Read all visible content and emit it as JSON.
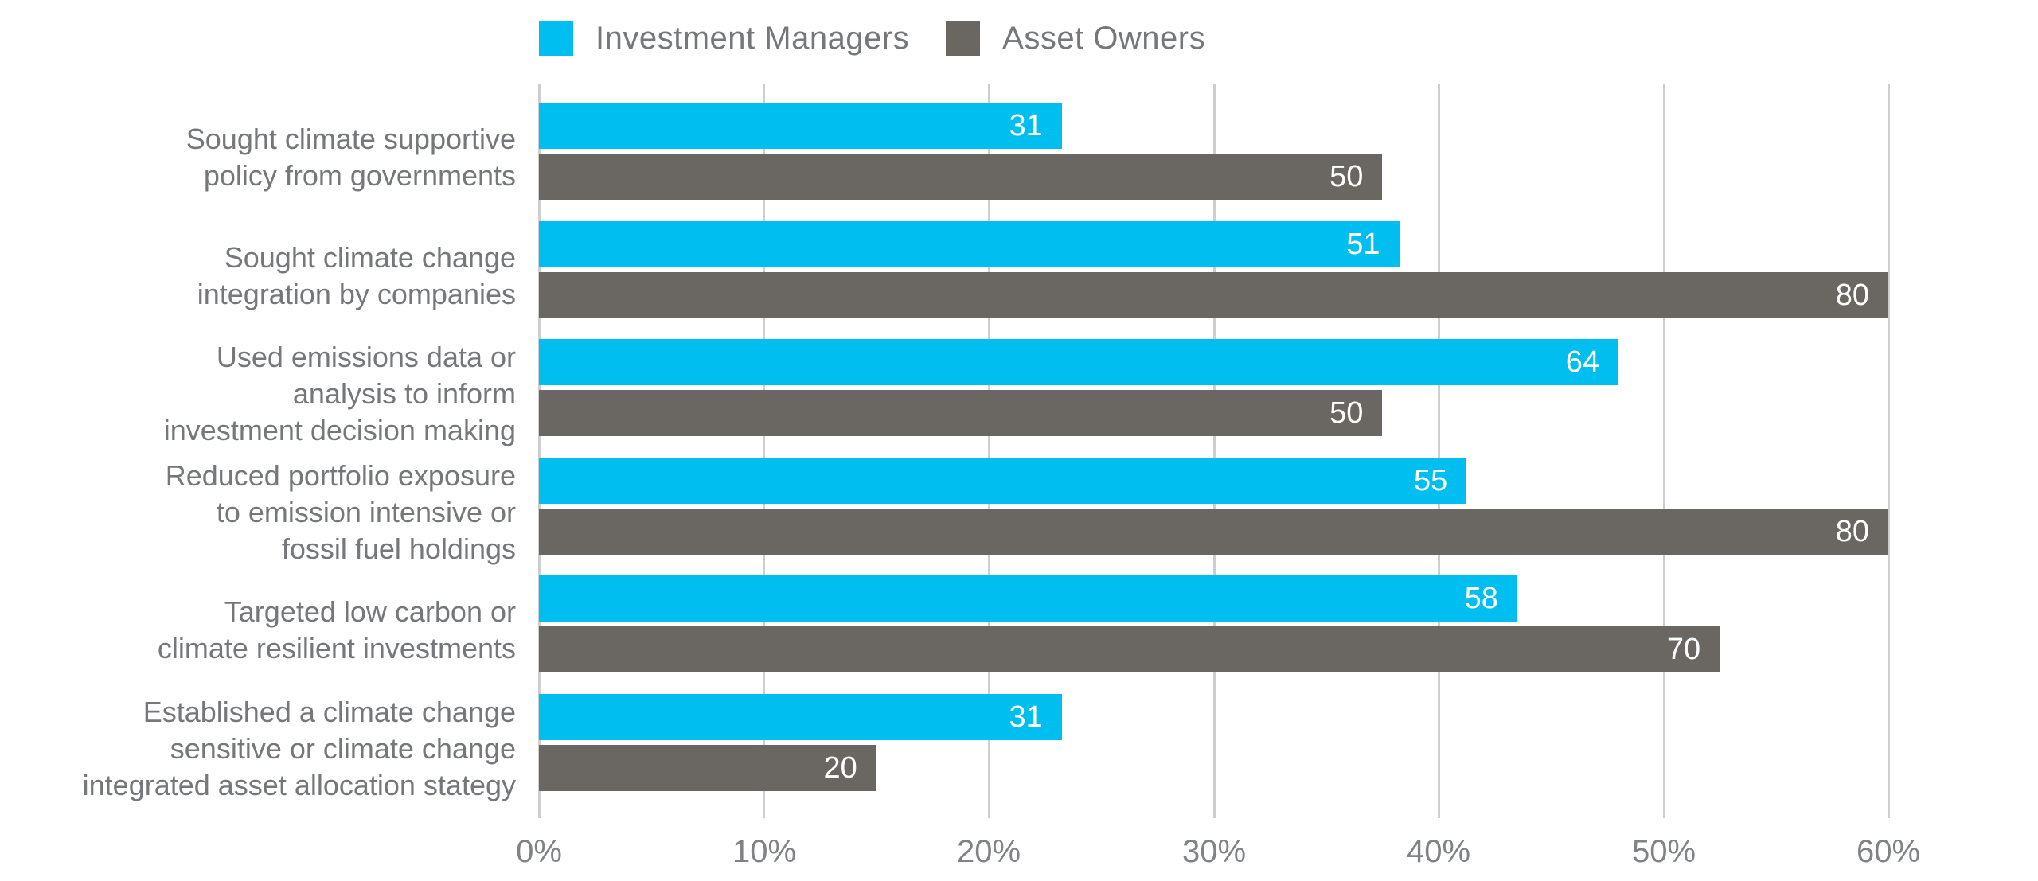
{
  "chart_data": {
    "type": "bar",
    "orientation": "horizontal",
    "title": "",
    "categories": [
      [
        "Sought climate supportive",
        "policy from governments"
      ],
      [
        "Sought climate change",
        "integration by companies"
      ],
      [
        "Used emissions data or",
        "analysis to inform",
        "investment decision making"
      ],
      [
        "Reduced portfolio exposure",
        "to emission intensive or",
        "fossil fuel holdings"
      ],
      [
        "Targeted low carbon or",
        "climate resilient investments"
      ],
      [
        "Established a climate change",
        "sensitive or climate change",
        "integrated asset allocation stategy"
      ]
    ],
    "series": [
      {
        "name": "Investment Managers",
        "color": "#00bef0",
        "values": [
          31,
          51,
          64,
          55,
          58,
          31
        ]
      },
      {
        "name": "Asset Owners",
        "color": "#6a6662",
        "values": [
          50,
          80,
          50,
          80,
          70,
          20
        ]
      }
    ],
    "value_labels_shown": true,
    "value_label_color": "#ffffff",
    "bar_scale_max": 80,
    "x_axis": {
      "tick_labels": [
        "0%",
        "10%",
        "20%",
        "30%",
        "40%",
        "50%",
        "60%"
      ],
      "min": 0,
      "max": 60,
      "unit": "%"
    },
    "grid": true,
    "gridline_color": "#cdced0",
    "legend_position": "top",
    "text_color": "#75777a",
    "background_color": "#ffffff"
  }
}
